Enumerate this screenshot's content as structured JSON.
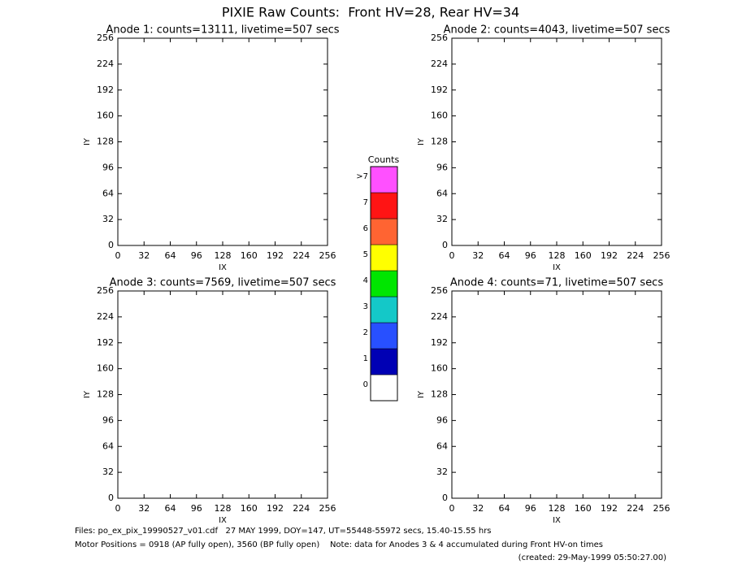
{
  "title": "PIXIE Raw Counts:  Front HV=28, Rear HV=34",
  "chart_data": [
    {
      "type": "heatmap",
      "title": "Anode 1: counts=13111, livetime=507 secs",
      "xlabel": "IX",
      "ylabel": "IY",
      "xlim": [
        0,
        256
      ],
      "xticks": [
        0,
        32,
        64,
        96,
        128,
        160,
        192,
        224,
        256
      ],
      "ylim": [
        0,
        256
      ],
      "yticks": [
        0,
        32,
        64,
        96,
        128,
        160,
        192,
        224,
        256
      ]
    },
    {
      "type": "heatmap",
      "title": "Anode 2: counts=4043, livetime=507 secs",
      "xlabel": "IX",
      "ylabel": "IY",
      "xlim": [
        0,
        256
      ],
      "xticks": [
        0,
        32,
        64,
        96,
        128,
        160,
        192,
        224,
        256
      ],
      "ylim": [
        0,
        256
      ],
      "yticks": [
        0,
        32,
        64,
        96,
        128,
        160,
        192,
        224,
        256
      ]
    },
    {
      "type": "heatmap",
      "title": "Anode 3: counts=7569, livetime=507 secs",
      "xlabel": "IX",
      "ylabel": "IY",
      "xlim": [
        0,
        256
      ],
      "xticks": [
        0,
        32,
        64,
        96,
        128,
        160,
        192,
        224,
        256
      ],
      "ylim": [
        0,
        256
      ],
      "yticks": [
        0,
        32,
        64,
        96,
        128,
        160,
        192,
        224,
        256
      ]
    },
    {
      "type": "heatmap",
      "title": "Anode 4: counts=71, livetime=507 secs",
      "xlabel": "IX",
      "ylabel": "IY",
      "xlim": [
        0,
        256
      ],
      "xticks": [
        0,
        32,
        64,
        96,
        128,
        160,
        192,
        224,
        256
      ],
      "ylim": [
        0,
        256
      ],
      "yticks": [
        0,
        32,
        64,
        96,
        128,
        160,
        192,
        224,
        256
      ]
    }
  ],
  "colorbar": {
    "title": "Counts",
    "labels": [
      0,
      1,
      2,
      3,
      4,
      5,
      6,
      7,
      ">7"
    ],
    "colors": [
      "#ffffff",
      "#0000b4",
      "#2850ff",
      "#14c8c8",
      "#00e600",
      "#ffff00",
      "#ff6432",
      "#ff1414",
      "#ff50ff"
    ]
  },
  "footer": {
    "files": "Files: po_ex_pix_19990527_v01.cdf   27 MAY 1999, DOY=147, UT=55448-55972 secs, 15.40-15.55 hrs",
    "motor": "Motor Positions = 0918 (AP fully open), 3560 (BP fully open)    Note: data for Anodes 3 & 4 accumulated during Front HV-on times",
    "created": "(created: 29-May-1999 05:50:27.00)"
  }
}
